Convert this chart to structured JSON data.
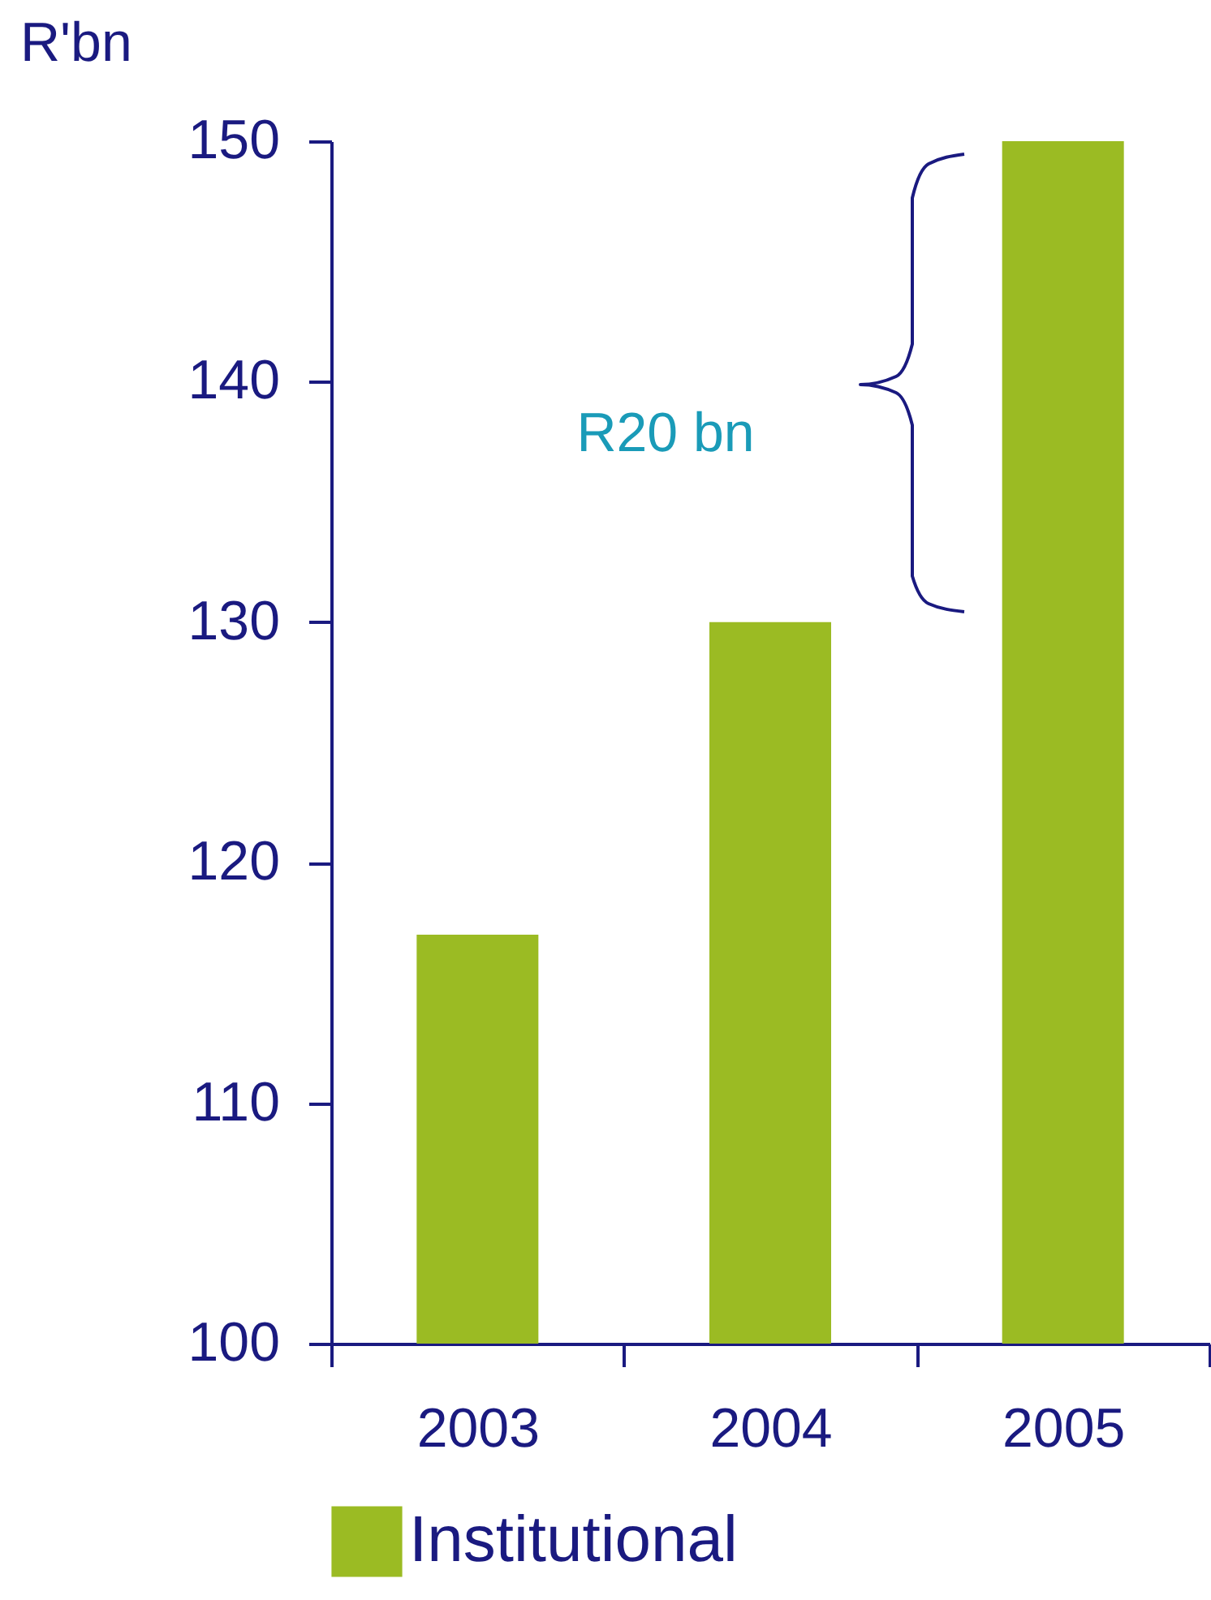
{
  "chart_data": {
    "type": "bar",
    "ylabel": "R'bn",
    "categories": [
      "2003",
      "2004",
      "2005"
    ],
    "series": [
      {
        "name": "Institutional",
        "color": "#9bbb23",
        "values": [
          117,
          130,
          150
        ]
      }
    ],
    "ylim": [
      100,
      150
    ],
    "yticks": [
      100,
      110,
      120,
      130,
      140,
      150
    ],
    "grid": false,
    "legend": "bottom",
    "annotations": [
      "R20 bn"
    ]
  }
}
